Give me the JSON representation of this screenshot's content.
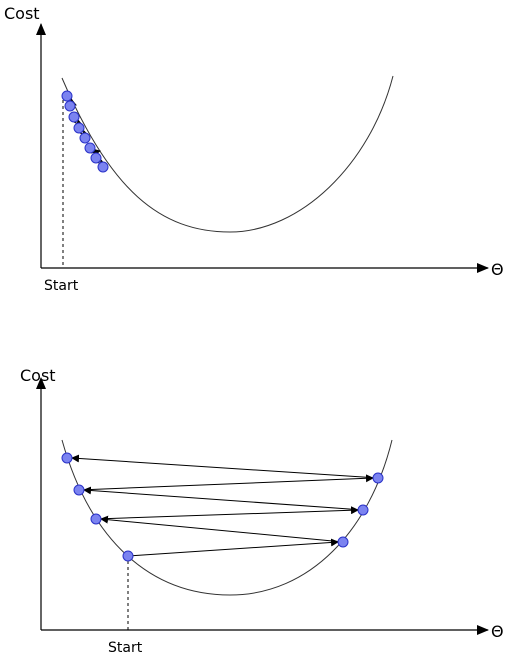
{
  "panels": [
    {
      "y_label": "Cost",
      "x_label": "Θ",
      "start_label": "Start"
    },
    {
      "y_label": "Cost",
      "x_label": "Θ",
      "start_label": "Start"
    }
  ]
}
